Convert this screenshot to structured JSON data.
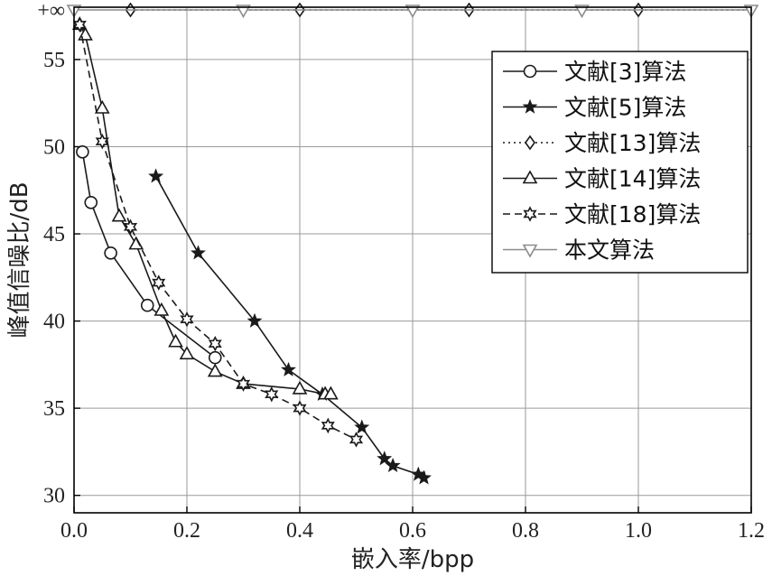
{
  "chart_data": {
    "type": "line",
    "xlabel": "嵌入率/bpp",
    "ylabel": "峰值信噪比/dB",
    "xlim": [
      0,
      1.2
    ],
    "ylim": [
      29,
      58
    ],
    "x_ticks": [
      0,
      0.2,
      0.4,
      0.6,
      0.8,
      1.0,
      1.2
    ],
    "x_tick_labels": [
      "0.0",
      "0.2",
      "0.4",
      "0.6",
      "0.8",
      "1.0",
      "1.2"
    ],
    "y_ticks": [
      30,
      35,
      40,
      45,
      50,
      55
    ],
    "y_tick_labels": [
      "30",
      "35",
      "40",
      "45",
      "50",
      "55"
    ],
    "infinity_label": "+∞",
    "grid": true,
    "legend_position": "top-right",
    "series": [
      {
        "name": "文献[3]算法",
        "marker": "circle",
        "dash": "solid",
        "color": "#1a1a1a",
        "points": [
          [
            0.015,
            49.7
          ],
          [
            0.03,
            46.8
          ],
          [
            0.065,
            43.9
          ],
          [
            0.13,
            40.9
          ],
          [
            0.25,
            37.9
          ]
        ]
      },
      {
        "name": "文献[5]算法",
        "marker": "star5",
        "dash": "solid",
        "color": "#1a1a1a",
        "points": [
          [
            0.145,
            48.3
          ],
          [
            0.22,
            43.9
          ],
          [
            0.32,
            40.0
          ],
          [
            0.38,
            37.2
          ],
          [
            0.44,
            35.8
          ],
          [
            0.51,
            33.9
          ],
          [
            0.55,
            32.1
          ],
          [
            0.565,
            31.7
          ],
          [
            0.61,
            31.2
          ],
          [
            0.62,
            31.0
          ]
        ]
      },
      {
        "name": "文献[13]算法",
        "marker": "diamond",
        "dash": "dotted",
        "color": "#1a1a1a",
        "infinity": true,
        "points": [
          [
            0.1,
            "+∞"
          ],
          [
            0.4,
            "+∞"
          ],
          [
            0.7,
            "+∞"
          ],
          [
            1.0,
            "+∞"
          ]
        ]
      },
      {
        "name": "文献[14]算法",
        "marker": "triangle-up",
        "dash": "solid",
        "color": "#1a1a1a",
        "points": [
          [
            0.01,
            57.0
          ],
          [
            0.02,
            56.4
          ],
          [
            0.05,
            52.2
          ],
          [
            0.08,
            46.0
          ],
          [
            0.11,
            44.4
          ],
          [
            0.155,
            40.6
          ],
          [
            0.18,
            38.8
          ],
          [
            0.2,
            38.1
          ],
          [
            0.25,
            37.1
          ],
          [
            0.3,
            36.4
          ],
          [
            0.4,
            36.1
          ],
          [
            0.445,
            35.8
          ],
          [
            0.455,
            35.8
          ]
        ]
      },
      {
        "name": "文献[18]算法",
        "marker": "star6",
        "dash": "dashed",
        "color": "#1a1a1a",
        "points": [
          [
            0.01,
            57.0
          ],
          [
            0.05,
            50.3
          ],
          [
            0.1,
            45.4
          ],
          [
            0.15,
            42.2
          ],
          [
            0.2,
            40.1
          ],
          [
            0.25,
            38.7
          ],
          [
            0.3,
            36.4
          ],
          [
            0.35,
            35.8
          ],
          [
            0.4,
            35.0
          ],
          [
            0.45,
            34.0
          ],
          [
            0.5,
            33.2
          ]
        ]
      },
      {
        "name": "本文算法",
        "marker": "triangle-down",
        "dash": "solid",
        "color": "#8c8c8c",
        "infinity": true,
        "points": [
          [
            0.0,
            "+∞"
          ],
          [
            0.3,
            "+∞"
          ],
          [
            0.6,
            "+∞"
          ],
          [
            0.9,
            "+∞"
          ],
          [
            1.2,
            "+∞"
          ]
        ]
      }
    ]
  }
}
